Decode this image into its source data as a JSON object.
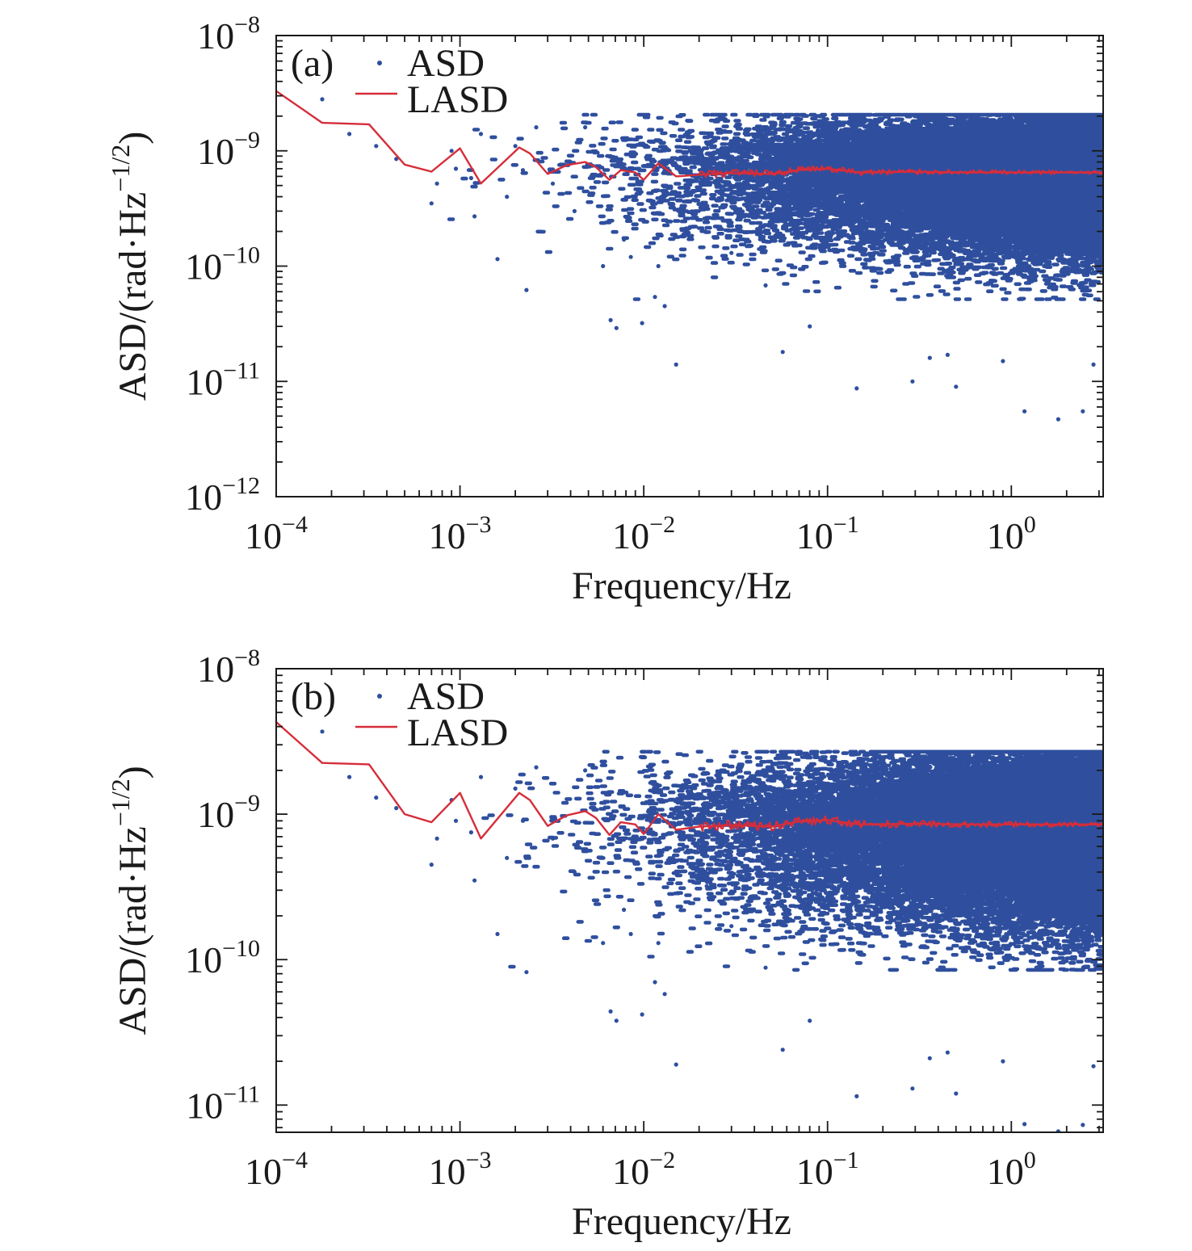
{
  "chart_data": [
    {
      "type": "scatter",
      "panel_label": "(a)",
      "xlabel": "Frequency/Hz",
      "ylabel": "ASD/(rad·Hz",
      "ylabel_exponent": "−1/2",
      "ylabel_close": ")",
      "xscale": "log",
      "yscale": "log",
      "xlim": [
        0.0001,
        3.16
      ],
      "ylim": [
        1e-12,
        1e-08
      ],
      "x_ticks": [
        {
          "value": 0.0001,
          "base": "10",
          "exp": "−4"
        },
        {
          "value": 0.001,
          "base": "10",
          "exp": "−3"
        },
        {
          "value": 0.01,
          "base": "10",
          "exp": "−2"
        },
        {
          "value": 0.1,
          "base": "10",
          "exp": "−1"
        },
        {
          "value": 1,
          "base": "10",
          "exp": "0"
        }
      ],
      "y_ticks": [
        {
          "value": 1e-08,
          "base": "10",
          "exp": "−8"
        },
        {
          "value": 1e-09,
          "base": "10",
          "exp": "−9"
        },
        {
          "value": 1e-10,
          "base": "10",
          "exp": "−10"
        },
        {
          "value": 1e-11,
          "base": "10",
          "exp": "−11"
        },
        {
          "value": 1e-12,
          "base": "10",
          "exp": "−12"
        }
      ],
      "legend": {
        "position": "top-left",
        "entries": [
          "ASD",
          "LASD"
        ]
      },
      "series": [
        {
          "name": "ASD",
          "kind": "scatter",
          "color": "#2f4f9e",
          "description_of_cloud": {
            "center_level": 6.5e-10,
            "spread_decades_above": 0.5,
            "spread_decades_below": 1.1,
            "density": "increasing with frequency"
          },
          "points": [
            [
              0.000178,
              2.8e-09
            ],
            [
              0.00025,
              1.4e-09
            ],
            [
              0.00035,
              1.1e-09
            ],
            [
              0.00045,
              8.5e-10
            ],
            [
              0.0007,
              3.5e-10
            ],
            [
              0.00075,
              5.2e-10
            ],
            [
              0.0009,
              1e-09
            ],
            [
              0.00095,
              7e-10
            ],
            [
              0.00115,
              5.8e-10
            ],
            [
              0.0012,
              2.7e-10
            ],
            [
              0.0013,
              1.4e-09
            ],
            [
              0.0016,
              1.15e-10
            ],
            [
              0.0018,
              4e-10
            ],
            [
              0.002,
              1.1e-09
            ],
            [
              0.0022,
              6.8e-10
            ],
            [
              0.0023,
              6.2e-11
            ],
            [
              0.0026,
              1.6e-09
            ],
            [
              0.0032,
              5.2e-10
            ],
            [
              0.0042,
              3e-10
            ],
            [
              0.0048,
              1.6e-09
            ],
            [
              0.006,
              1e-10
            ],
            [
              0.0066,
              3.4e-11
            ],
            [
              0.0071,
              2.9e-11
            ],
            [
              0.0078,
              1.7e-10
            ],
            [
              0.0085,
              1.2e-10
            ],
            [
              0.0098,
              3.2e-11
            ],
            [
              0.0115,
              5.4e-11
            ],
            [
              0.012,
              1e-10
            ],
            [
              0.013,
              4.5e-11
            ],
            [
              0.015,
              1.4e-11
            ],
            [
              0.022,
              2.5e-10
            ],
            [
              0.03,
              1.3e-10
            ],
            [
              0.046,
              6.8e-11
            ],
            [
              0.057,
              1.8e-11
            ],
            [
              0.08,
              3e-11
            ],
            [
              0.144,
              8.7e-12
            ],
            [
              0.29,
              1e-11
            ],
            [
              0.5,
              9e-12
            ],
            [
              1.18,
              5.5e-12
            ],
            [
              1.8,
              4.7e-12
            ],
            [
              2.45,
              5.5e-12
            ],
            [
              2.8,
              1.4e-11
            ],
            [
              0.36,
              1.6e-11
            ],
            [
              0.45,
              1.7e-11
            ],
            [
              0.9,
              1.5e-11
            ]
          ]
        },
        {
          "name": "LASD",
          "kind": "line",
          "color": "#d62d3a",
          "points": [
            [
              0.0001,
              3.3e-09
            ],
            [
              0.000178,
              1.75e-09
            ],
            [
              0.00032,
              1.7e-09
            ],
            [
              0.0005,
              7.6e-10
            ],
            [
              0.0007,
              6.6e-10
            ],
            [
              0.001,
              1.05e-09
            ],
            [
              0.0013,
              5.2e-10
            ],
            [
              0.0021,
              1.07e-09
            ],
            [
              0.0024,
              9.5e-10
            ],
            [
              0.003,
              6.3e-10
            ],
            [
              0.0038,
              7.5e-10
            ],
            [
              0.0048,
              8e-10
            ],
            [
              0.0055,
              7.2e-10
            ],
            [
              0.0065,
              5.6e-10
            ],
            [
              0.0075,
              6.8e-10
            ],
            [
              0.009,
              6.5e-10
            ],
            [
              0.01,
              5.6e-10
            ],
            [
              0.012,
              7.8e-10
            ],
            [
              0.015,
              6e-10
            ],
            [
              0.02,
              6.2e-10
            ],
            [
              0.03,
              6.4e-10
            ],
            [
              0.05,
              6.3e-10
            ],
            [
              0.07,
              6.8e-10
            ],
            [
              0.1,
              7e-10
            ],
            [
              0.15,
              6.5e-10
            ],
            [
              0.3,
              6.6e-10
            ],
            [
              0.6,
              6.5e-10
            ],
            [
              1.0,
              6.5e-10
            ],
            [
              2.0,
              6.5e-10
            ],
            [
              3.16,
              6.5e-10
            ]
          ]
        }
      ]
    },
    {
      "type": "scatter",
      "panel_label": "(b)",
      "xlabel": "Frequency/Hz",
      "ylabel": "ASD/(rad·Hz",
      "ylabel_exponent": "−1/2",
      "ylabel_close": ")",
      "xscale": "log",
      "yscale": "log",
      "xlim": [
        0.0001,
        3.16
      ],
      "ylim": [
        6.5e-12,
        1e-08
      ],
      "x_ticks": [
        {
          "value": 0.0001,
          "base": "10",
          "exp": "−4"
        },
        {
          "value": 0.001,
          "base": "10",
          "exp": "−3"
        },
        {
          "value": 0.01,
          "base": "10",
          "exp": "−2"
        },
        {
          "value": 0.1,
          "base": "10",
          "exp": "−1"
        },
        {
          "value": 1,
          "base": "10",
          "exp": "0"
        }
      ],
      "y_ticks": [
        {
          "value": 1e-08,
          "base": "10",
          "exp": "−8"
        },
        {
          "value": 1e-09,
          "base": "10",
          "exp": "−9"
        },
        {
          "value": 1e-10,
          "base": "10",
          "exp": "−10"
        },
        {
          "value": 1e-11,
          "base": "10",
          "exp": "−11"
        }
      ],
      "legend": {
        "position": "top-left",
        "entries": [
          "ASD",
          "LASD"
        ]
      },
      "series": [
        {
          "name": "ASD",
          "kind": "scatter",
          "color": "#2f4f9e",
          "description_of_cloud": {
            "center_level": 8.5e-10,
            "spread_decades_above": 0.5,
            "spread_decades_below": 1.0,
            "density": "increasing with frequency"
          },
          "points": [
            [
              0.000178,
              3.7e-09
            ],
            [
              0.00025,
              1.8e-09
            ],
            [
              0.00035,
              1.3e-09
            ],
            [
              0.00045,
              1.1e-09
            ],
            [
              0.0007,
              4.5e-10
            ],
            [
              0.00075,
              6.8e-10
            ],
            [
              0.0009,
              1.25e-09
            ],
            [
              0.00095,
              9e-10
            ],
            [
              0.00115,
              7.5e-10
            ],
            [
              0.0012,
              3.5e-10
            ],
            [
              0.0013,
              1.8e-09
            ],
            [
              0.0016,
              1.5e-10
            ],
            [
              0.0018,
              5e-10
            ],
            [
              0.002,
              1.5e-09
            ],
            [
              0.0022,
              9e-10
            ],
            [
              0.0023,
              8.2e-11
            ],
            [
              0.0026,
              2.1e-09
            ],
            [
              0.0032,
              6.8e-10
            ],
            [
              0.0042,
              4e-10
            ],
            [
              0.0048,
              2e-09
            ],
            [
              0.006,
              1.3e-10
            ],
            [
              0.0066,
              4.4e-11
            ],
            [
              0.0071,
              3.8e-11
            ],
            [
              0.0078,
              2.2e-10
            ],
            [
              0.0085,
              1.5e-10
            ],
            [
              0.0098,
              4.2e-11
            ],
            [
              0.0115,
              7e-11
            ],
            [
              0.012,
              1.3e-10
            ],
            [
              0.013,
              5.8e-11
            ],
            [
              0.015,
              1.9e-11
            ],
            [
              0.022,
              3.2e-10
            ],
            [
              0.03,
              1.7e-10
            ],
            [
              0.046,
              8.8e-11
            ],
            [
              0.057,
              2.4e-11
            ],
            [
              0.08,
              3.8e-11
            ],
            [
              0.144,
              1.15e-11
            ],
            [
              0.29,
              1.3e-11
            ],
            [
              0.5,
              1.2e-11
            ],
            [
              1.18,
              7.4e-12
            ],
            [
              1.8,
              6.6e-12
            ],
            [
              2.45,
              7.3e-12
            ],
            [
              2.8,
              1.85e-11
            ],
            [
              0.36,
              2.1e-11
            ],
            [
              0.45,
              2.3e-11
            ],
            [
              0.9,
              2e-11
            ]
          ]
        },
        {
          "name": "LASD",
          "kind": "line",
          "color": "#d62d3a",
          "points": [
            [
              0.0001,
              4.3e-09
            ],
            [
              0.000178,
              2.25e-09
            ],
            [
              0.00032,
              2.2e-09
            ],
            [
              0.0005,
              1e-09
            ],
            [
              0.0007,
              8.8e-10
            ],
            [
              0.001,
              1.4e-09
            ],
            [
              0.0013,
              6.8e-10
            ],
            [
              0.0021,
              1.4e-09
            ],
            [
              0.0024,
              1.25e-09
            ],
            [
              0.003,
              8.3e-10
            ],
            [
              0.0038,
              9.8e-10
            ],
            [
              0.0048,
              1.05e-09
            ],
            [
              0.0055,
              9.4e-10
            ],
            [
              0.0065,
              7.2e-10
            ],
            [
              0.0075,
              8.8e-10
            ],
            [
              0.009,
              8.5e-10
            ],
            [
              0.01,
              7.3e-10
            ],
            [
              0.012,
              1e-09
            ],
            [
              0.015,
              7.8e-10
            ],
            [
              0.02,
              8.2e-10
            ],
            [
              0.03,
              8.4e-10
            ],
            [
              0.05,
              8.2e-10
            ],
            [
              0.07,
              8.9e-10
            ],
            [
              0.1,
              9.1e-10
            ],
            [
              0.15,
              8.5e-10
            ],
            [
              0.3,
              8.6e-10
            ],
            [
              0.6,
              8.5e-10
            ],
            [
              1.0,
              8.5e-10
            ],
            [
              2.0,
              8.5e-10
            ],
            [
              3.16,
              8.5e-10
            ]
          ]
        }
      ]
    }
  ]
}
